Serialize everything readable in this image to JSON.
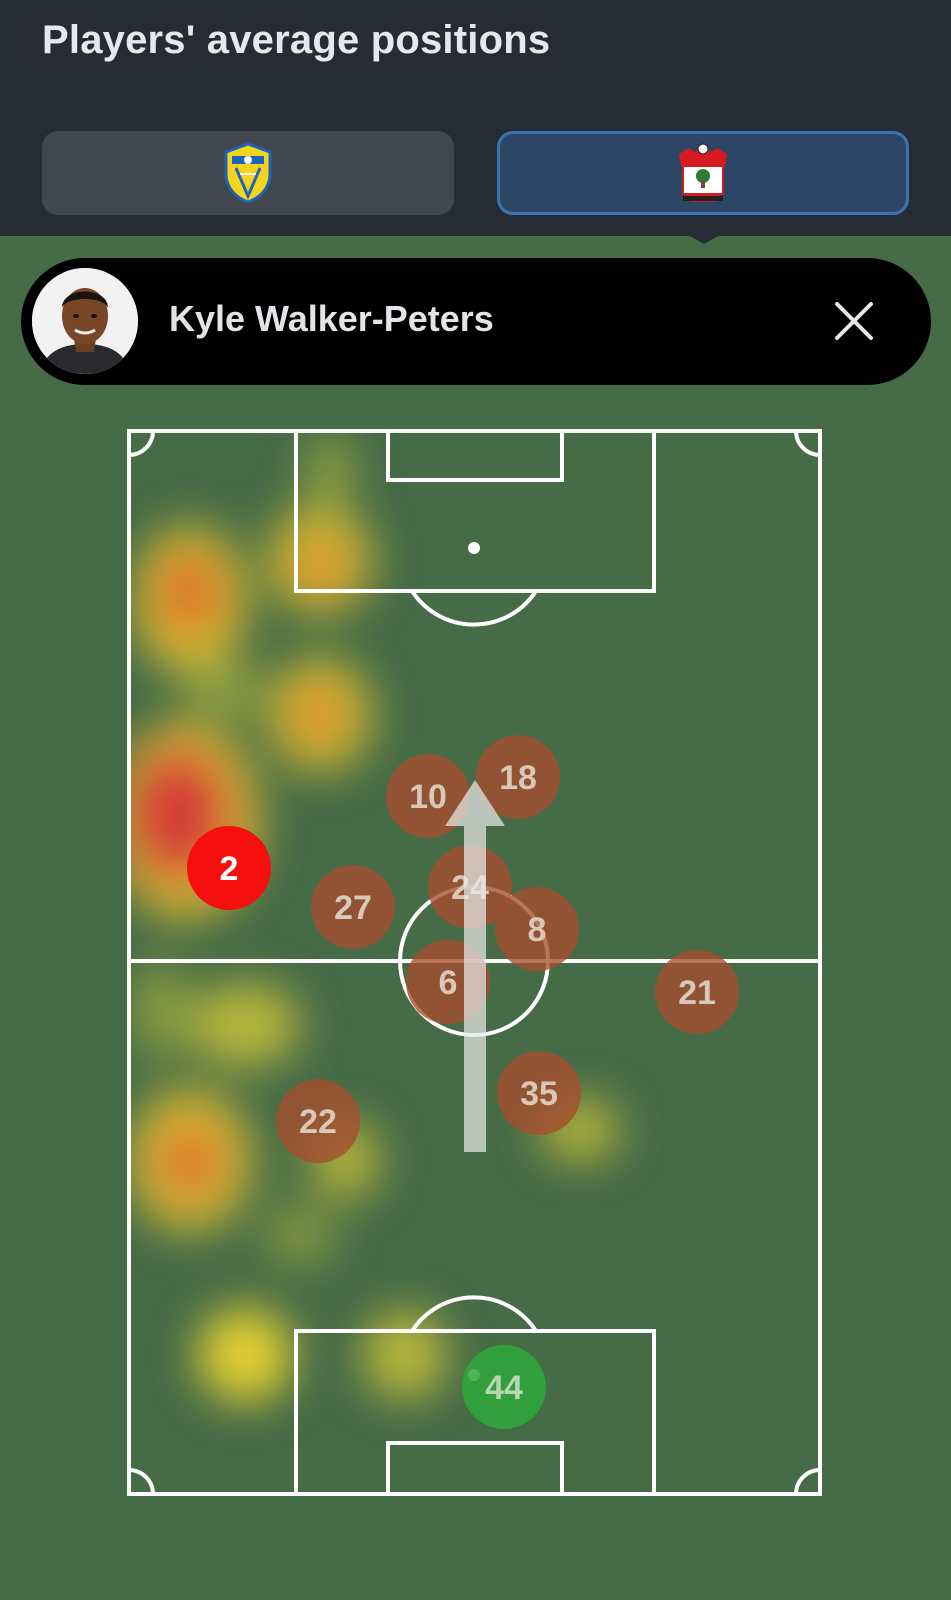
{
  "header": {
    "title": "Players' average positions"
  },
  "teams": [
    {
      "name": "Leeds United",
      "active": false,
      "crest_colors": {
        "primary": "#f5d51b",
        "secondary": "#1d63b7"
      }
    },
    {
      "name": "Southampton",
      "active": true,
      "crest_colors": {
        "primary": "#d71920",
        "secondary": "#ffffff"
      }
    }
  ],
  "selected_player": {
    "name": "Kyle Walker-Peters",
    "close_icon": "close-icon"
  },
  "colors": {
    "pitch": "#456b47",
    "header": "#272b34",
    "selected_player_marker": "#f50f0f",
    "teammate_marker": "#a64d2e",
    "goalkeeper_marker": "#2ea83a"
  },
  "players": [
    {
      "number": "2",
      "selected": true
    },
    {
      "number": "10",
      "selected": false
    },
    {
      "number": "18",
      "selected": false
    },
    {
      "number": "24",
      "selected": false
    },
    {
      "number": "27",
      "selected": false
    },
    {
      "number": "8",
      "selected": false
    },
    {
      "number": "6",
      "selected": false
    },
    {
      "number": "21",
      "selected": false
    },
    {
      "number": "35",
      "selected": false
    },
    {
      "number": "22",
      "selected": false
    },
    {
      "number": "44",
      "selected": false,
      "goalkeeper": true
    }
  ]
}
